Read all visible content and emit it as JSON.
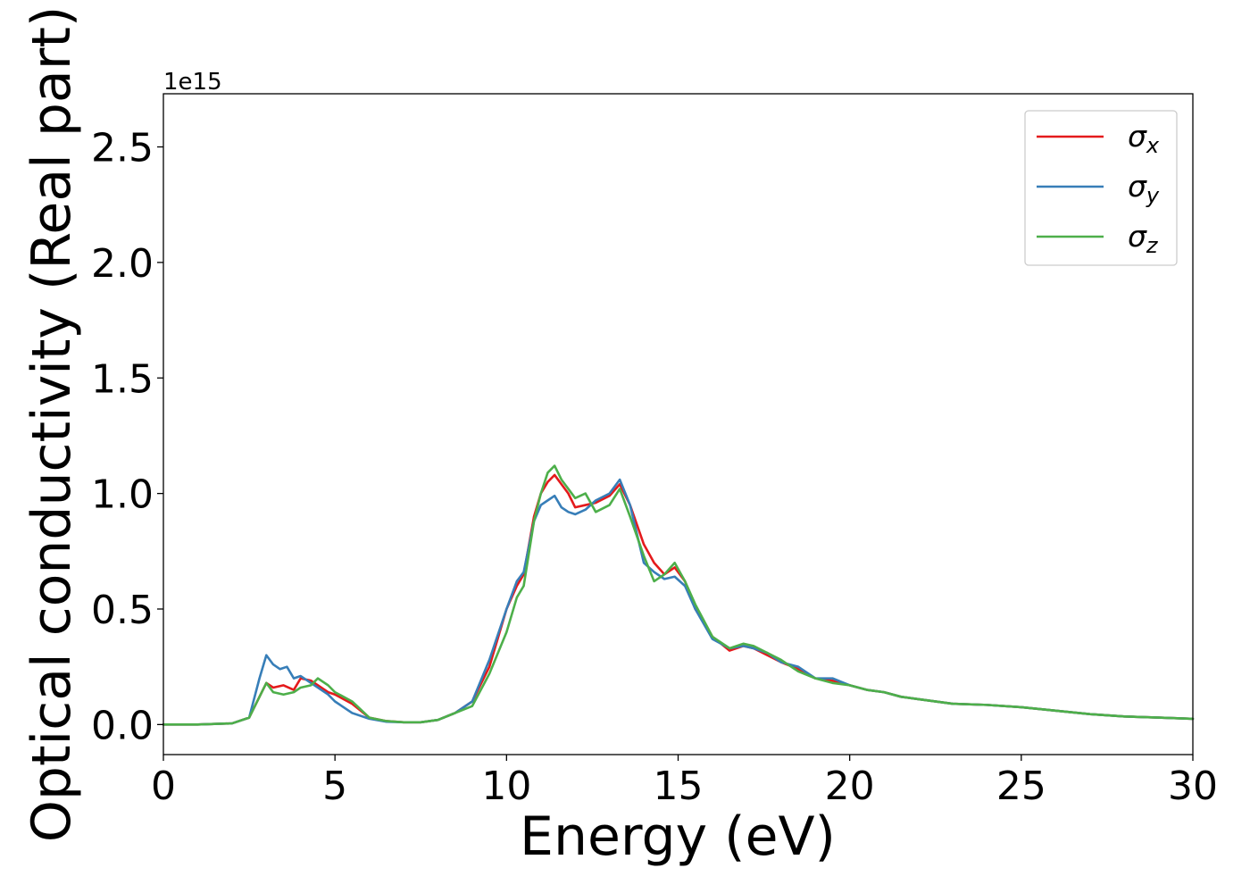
{
  "chart_data": {
    "type": "line",
    "title": "",
    "xlabel": "Energy (eV)",
    "ylabel": "Optical conductivity (Real part)",
    "y_offset_label": "1e15",
    "xlim": [
      0,
      30
    ],
    "ylim": [
      -0.13,
      2.73
    ],
    "xticks": [
      0,
      5,
      10,
      15,
      20,
      25,
      30
    ],
    "xtick_labels": [
      "0",
      "5",
      "10",
      "15",
      "20",
      "25",
      "30"
    ],
    "yticks": [
      0.0,
      0.5,
      1.0,
      1.5,
      2.0,
      2.5
    ],
    "ytick_labels": [
      "0.0",
      "0.5",
      "1.0",
      "1.5",
      "2.0",
      "2.5"
    ],
    "grid": false,
    "legend_position": "top-right",
    "series": [
      {
        "name": "σx",
        "label_base": "σ",
        "label_sub": "x",
        "color": "#e41a1c",
        "x": [
          0,
          1,
          2,
          2.5,
          2.8,
          3,
          3.2,
          3.5,
          3.8,
          4,
          4.3,
          4.5,
          4.8,
          5,
          5.5,
          6,
          6.5,
          7,
          7.5,
          8,
          8.5,
          9,
          9.5,
          10,
          10.3,
          10.5,
          10.8,
          11,
          11.2,
          11.4,
          11.6,
          11.8,
          12,
          12.3,
          12.6,
          13,
          13.3,
          13.6,
          14,
          14.3,
          14.6,
          14.9,
          15.2,
          15.5,
          16,
          16.5,
          16.9,
          17.2,
          17.6,
          18,
          18.5,
          19,
          19.5,
          20,
          20.5,
          21,
          21.5,
          22,
          23,
          24,
          25,
          26,
          27,
          28,
          29,
          30
        ],
        "y": [
          0,
          0,
          0.005,
          0.03,
          0.12,
          0.18,
          0.16,
          0.17,
          0.15,
          0.2,
          0.19,
          0.17,
          0.14,
          0.13,
          0.09,
          0.03,
          0.015,
          0.01,
          0.01,
          0.02,
          0.05,
          0.1,
          0.25,
          0.5,
          0.6,
          0.65,
          0.9,
          1.0,
          1.05,
          1.08,
          1.04,
          1.0,
          0.94,
          0.95,
          0.96,
          0.99,
          1.04,
          0.95,
          0.78,
          0.7,
          0.65,
          0.68,
          0.62,
          0.5,
          0.38,
          0.32,
          0.34,
          0.33,
          0.3,
          0.27,
          0.24,
          0.2,
          0.19,
          0.17,
          0.15,
          0.14,
          0.12,
          0.11,
          0.09,
          0.085,
          0.075,
          0.06,
          0.045,
          0.035,
          0.03,
          0.025
        ]
      },
      {
        "name": "σy",
        "label_base": "σ",
        "label_sub": "y",
        "color": "#377eb8",
        "x": [
          0,
          1,
          2,
          2.5,
          2.8,
          3,
          3.2,
          3.4,
          3.6,
          3.8,
          4,
          4.3,
          4.5,
          4.8,
          5,
          5.5,
          6,
          6.5,
          7,
          7.5,
          8,
          8.5,
          9,
          9.5,
          10,
          10.3,
          10.5,
          10.8,
          11,
          11.2,
          11.4,
          11.6,
          11.8,
          12,
          12.3,
          12.6,
          13,
          13.3,
          13.6,
          14,
          14.3,
          14.6,
          14.9,
          15.2,
          15.5,
          16,
          16.5,
          16.9,
          17.2,
          17.6,
          18,
          18.5,
          19,
          19.5,
          20,
          20.5,
          21,
          21.5,
          22,
          23,
          24,
          25,
          26,
          27,
          28,
          29,
          30
        ],
        "y": [
          0,
          0,
          0.005,
          0.03,
          0.2,
          0.3,
          0.26,
          0.24,
          0.25,
          0.2,
          0.21,
          0.18,
          0.16,
          0.13,
          0.1,
          0.05,
          0.025,
          0.012,
          0.01,
          0.01,
          0.02,
          0.05,
          0.1,
          0.28,
          0.5,
          0.62,
          0.66,
          0.88,
          0.95,
          0.97,
          0.99,
          0.94,
          0.92,
          0.91,
          0.93,
          0.97,
          1.0,
          1.06,
          0.95,
          0.7,
          0.66,
          0.63,
          0.64,
          0.6,
          0.5,
          0.37,
          0.33,
          0.34,
          0.33,
          0.31,
          0.27,
          0.25,
          0.2,
          0.2,
          0.17,
          0.15,
          0.14,
          0.12,
          0.11,
          0.09,
          0.085,
          0.075,
          0.06,
          0.045,
          0.035,
          0.03,
          0.025
        ]
      },
      {
        "name": "σz",
        "label_base": "σ",
        "label_sub": "z",
        "color": "#4daf4a",
        "x": [
          0,
          1,
          2,
          2.5,
          2.8,
          3,
          3.2,
          3.5,
          3.8,
          4,
          4.3,
          4.5,
          4.8,
          5,
          5.5,
          6,
          6.5,
          7,
          7.5,
          8,
          8.5,
          9,
          9.5,
          10,
          10.3,
          10.5,
          10.8,
          11,
          11.2,
          11.4,
          11.6,
          11.8,
          12,
          12.3,
          12.6,
          13,
          13.3,
          13.6,
          14,
          14.3,
          14.6,
          14.9,
          15.2,
          15.5,
          16,
          16.5,
          16.9,
          17.2,
          17.6,
          18,
          18.5,
          19,
          19.5,
          20,
          20.5,
          21,
          21.5,
          22,
          23,
          24,
          25,
          26,
          27,
          28,
          29,
          30
        ],
        "y": [
          0,
          0,
          0.005,
          0.03,
          0.12,
          0.18,
          0.14,
          0.13,
          0.14,
          0.16,
          0.17,
          0.2,
          0.17,
          0.14,
          0.1,
          0.03,
          0.015,
          0.01,
          0.01,
          0.02,
          0.05,
          0.08,
          0.22,
          0.4,
          0.55,
          0.6,
          0.88,
          1.0,
          1.09,
          1.12,
          1.06,
          1.02,
          0.98,
          1.0,
          0.92,
          0.95,
          1.02,
          0.9,
          0.73,
          0.62,
          0.65,
          0.7,
          0.62,
          0.52,
          0.38,
          0.33,
          0.35,
          0.34,
          0.31,
          0.28,
          0.23,
          0.2,
          0.18,
          0.17,
          0.15,
          0.14,
          0.12,
          0.11,
          0.09,
          0.085,
          0.075,
          0.06,
          0.045,
          0.035,
          0.03,
          0.025
        ]
      }
    ]
  }
}
